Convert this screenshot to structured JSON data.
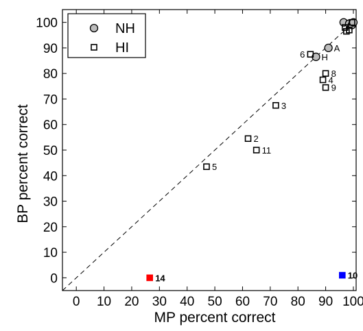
{
  "chart_data": {
    "type": "scatter",
    "xlabel": "MP percent correct",
    "ylabel": "BP percent correct",
    "xlim": [
      -5,
      101
    ],
    "ylim": [
      -5,
      105
    ],
    "xticks": [
      0,
      10,
      20,
      30,
      40,
      50,
      60,
      70,
      80,
      90,
      100
    ],
    "yticks": [
      0,
      10,
      20,
      30,
      40,
      50,
      60,
      70,
      80,
      90,
      100
    ],
    "reference_line": "y = x (dashed)",
    "legend": {
      "position": "top-left",
      "entries": [
        {
          "label": "NH",
          "marker": "circle",
          "fill": "#bdbdbd"
        },
        {
          "label": "HI",
          "marker": "square",
          "fill": "none"
        }
      ]
    },
    "series": [
      {
        "name": "NH",
        "marker": "circle",
        "points": [
          {
            "x": 96.5,
            "y": 100,
            "label": ""
          },
          {
            "x": 98.5,
            "y": 99.5,
            "label": ""
          },
          {
            "x": 99.5,
            "y": 99,
            "label": ""
          },
          {
            "x": 100,
            "y": 100,
            "label": ""
          },
          {
            "x": 91,
            "y": 90,
            "label": "A"
          },
          {
            "x": 86.5,
            "y": 86.5,
            "label": "H"
          }
        ]
      },
      {
        "name": "HI",
        "marker": "square",
        "points": [
          {
            "x": 84.5,
            "y": 87.5,
            "label": "6",
            "label_side": "left"
          },
          {
            "x": 90,
            "y": 80,
            "label": "8"
          },
          {
            "x": 89,
            "y": 77.5,
            "label": "4"
          },
          {
            "x": 90,
            "y": 74.5,
            "label": "9"
          },
          {
            "x": 72,
            "y": 67.5,
            "label": "3"
          },
          {
            "x": 62,
            "y": 54.5,
            "label": "2"
          },
          {
            "x": 65,
            "y": 50,
            "label": "11"
          },
          {
            "x": 47,
            "y": 43.5,
            "label": "5"
          },
          {
            "x": 97,
            "y": 98,
            "label": ""
          },
          {
            "x": 98.5,
            "y": 97,
            "label": ""
          },
          {
            "x": 99.5,
            "y": 100,
            "label": ""
          },
          {
            "x": 97.5,
            "y": 96.5,
            "label": ""
          },
          {
            "x": 26.5,
            "y": 0,
            "label": "14",
            "color": "#ff0000",
            "filled": true
          },
          {
            "x": 96,
            "y": 1,
            "label": "10",
            "color": "#0000ff",
            "filled": true
          }
        ]
      }
    ]
  }
}
